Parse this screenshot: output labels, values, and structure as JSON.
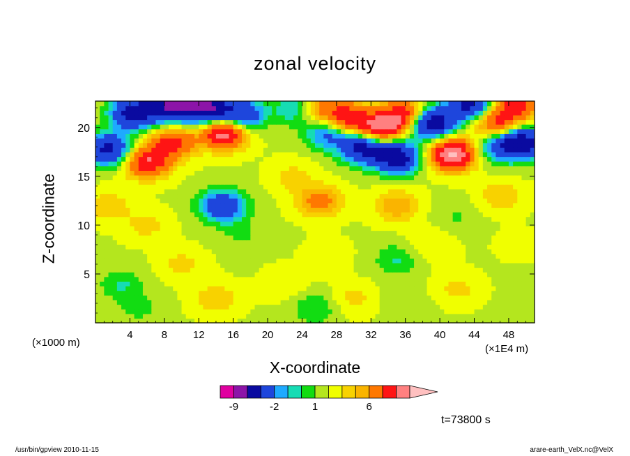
{
  "chart_data": {
    "type": "heatmap",
    "title": "zonal velocity",
    "xlabel": "X-coordinate",
    "ylabel": "Z-coordinate",
    "x_offset_note": "(×1000 m)",
    "x_scale_note": "(×1E4 m)",
    "x_ticks": [
      "4",
      "8",
      "12",
      "16",
      "20",
      "24",
      "28",
      "32",
      "36",
      "40",
      "44",
      "48"
    ],
    "x_tick_values": [
      4,
      8,
      12,
      16,
      20,
      24,
      28,
      32,
      36,
      40,
      44,
      48
    ],
    "y_ticks": [
      "5",
      "10",
      "15",
      "20"
    ],
    "y_tick_values": [
      5,
      10,
      15,
      20
    ],
    "xlim": [
      0,
      51
    ],
    "ylim": [
      0,
      22.7
    ],
    "time_label": "t=73800 s",
    "colorbar": {
      "tick_labels": [
        "-9",
        "-2",
        "1",
        "6"
      ],
      "levels": [
        -12,
        -9,
        -6,
        -3,
        -2,
        -1,
        0,
        1,
        2,
        3,
        4,
        6,
        8,
        10,
        12
      ],
      "colors": [
        "#e000a0",
        "#8c14a8",
        "#0a0aa0",
        "#1e46dc",
        "#1eaaff",
        "#16dcb4",
        "#12dc12",
        "#b4e61e",
        "#f0ff00",
        "#f8d200",
        "#fab400",
        "#ff7800",
        "#ff1414",
        "#ff8080",
        "#ffc0c0"
      ]
    },
    "features": [
      {
        "x": 1.5,
        "z": 17.8,
        "value": -8
      },
      {
        "x": 4.5,
        "z": 21.5,
        "value": -9
      },
      {
        "x": 9,
        "z": 22.3,
        "value": -10
      },
      {
        "x": 13,
        "z": 22.0,
        "value": -10
      },
      {
        "x": 17,
        "z": 21.3,
        "value": -7
      },
      {
        "x": 24,
        "z": 22.0,
        "value": -8
      },
      {
        "x": 27,
        "z": 19.5,
        "value": -5
      },
      {
        "x": 31,
        "z": 18.0,
        "value": -8
      },
      {
        "x": 35,
        "z": 17.0,
        "value": -9
      },
      {
        "x": 39,
        "z": 20.5,
        "value": -10
      },
      {
        "x": 43.5,
        "z": 22.3,
        "value": -8
      },
      {
        "x": 49.5,
        "z": 18.5,
        "value": -9
      },
      {
        "x": 46.5,
        "z": 18.0,
        "value": -4
      },
      {
        "x": 14.5,
        "z": 12.0,
        "value": -2.5
      },
      {
        "x": 15,
        "z": 12.0,
        "value": -4
      },
      {
        "x": 3,
        "z": 4.0,
        "value": -2
      },
      {
        "x": 35,
        "z": 6.5,
        "value": -2
      },
      {
        "x": 25.5,
        "z": 1.5,
        "value": -2
      },
      {
        "x": 6,
        "z": 16.5,
        "value": 7
      },
      {
        "x": 9,
        "z": 18.5,
        "value": 6
      },
      {
        "x": 15,
        "z": 19.5,
        "value": 9
      },
      {
        "x": 25,
        "z": 22.0,
        "value": 8
      },
      {
        "x": 29,
        "z": 21.0,
        "value": 7
      },
      {
        "x": 33,
        "z": 20.0,
        "value": 8
      },
      {
        "x": 36,
        "z": 21.3,
        "value": 7
      },
      {
        "x": 41.5,
        "z": 17.3,
        "value": 10
      },
      {
        "x": 46.5,
        "z": 20.5,
        "value": 6
      },
      {
        "x": 49,
        "z": 22.3,
        "value": 6
      },
      {
        "x": 26,
        "z": 12.5,
        "value": 4
      },
      {
        "x": 35,
        "z": 12.0,
        "value": 3
      },
      {
        "x": 1.5,
        "z": 12.0,
        "value": 2
      },
      {
        "x": 14,
        "z": 2.5,
        "value": 2
      },
      {
        "x": 6,
        "z": 10.0,
        "value": 1.5
      },
      {
        "x": 30,
        "z": 2.5,
        "value": 1.5
      },
      {
        "x": 42,
        "z": 3.5,
        "value": 1.5
      },
      {
        "x": 47,
        "z": 13.0,
        "value": 2
      },
      {
        "x": 27,
        "z": 7.0,
        "value": 0.8
      },
      {
        "x": 17,
        "z": 9.0,
        "value": -1
      },
      {
        "x": 42,
        "z": 11.0,
        "value": -1
      },
      {
        "x": 5,
        "z": 1.5,
        "value": -1.2
      },
      {
        "x": 36,
        "z": 2.0,
        "value": -0.8
      },
      {
        "x": 23,
        "z": 15.0,
        "value": 1.5
      },
      {
        "x": 39,
        "z": 8.0,
        "value": 1.2
      },
      {
        "x": 10,
        "z": 6.0,
        "value": 1.5
      },
      {
        "x": 49,
        "z": 8.0,
        "value": 0.5
      },
      {
        "x": 22,
        "z": 4.0,
        "value": 1.0
      }
    ]
  },
  "footer": {
    "left": "/usr/bin/gpview   2010-11-15",
    "right": "arare-earth_VelX.nc@VelX"
  }
}
